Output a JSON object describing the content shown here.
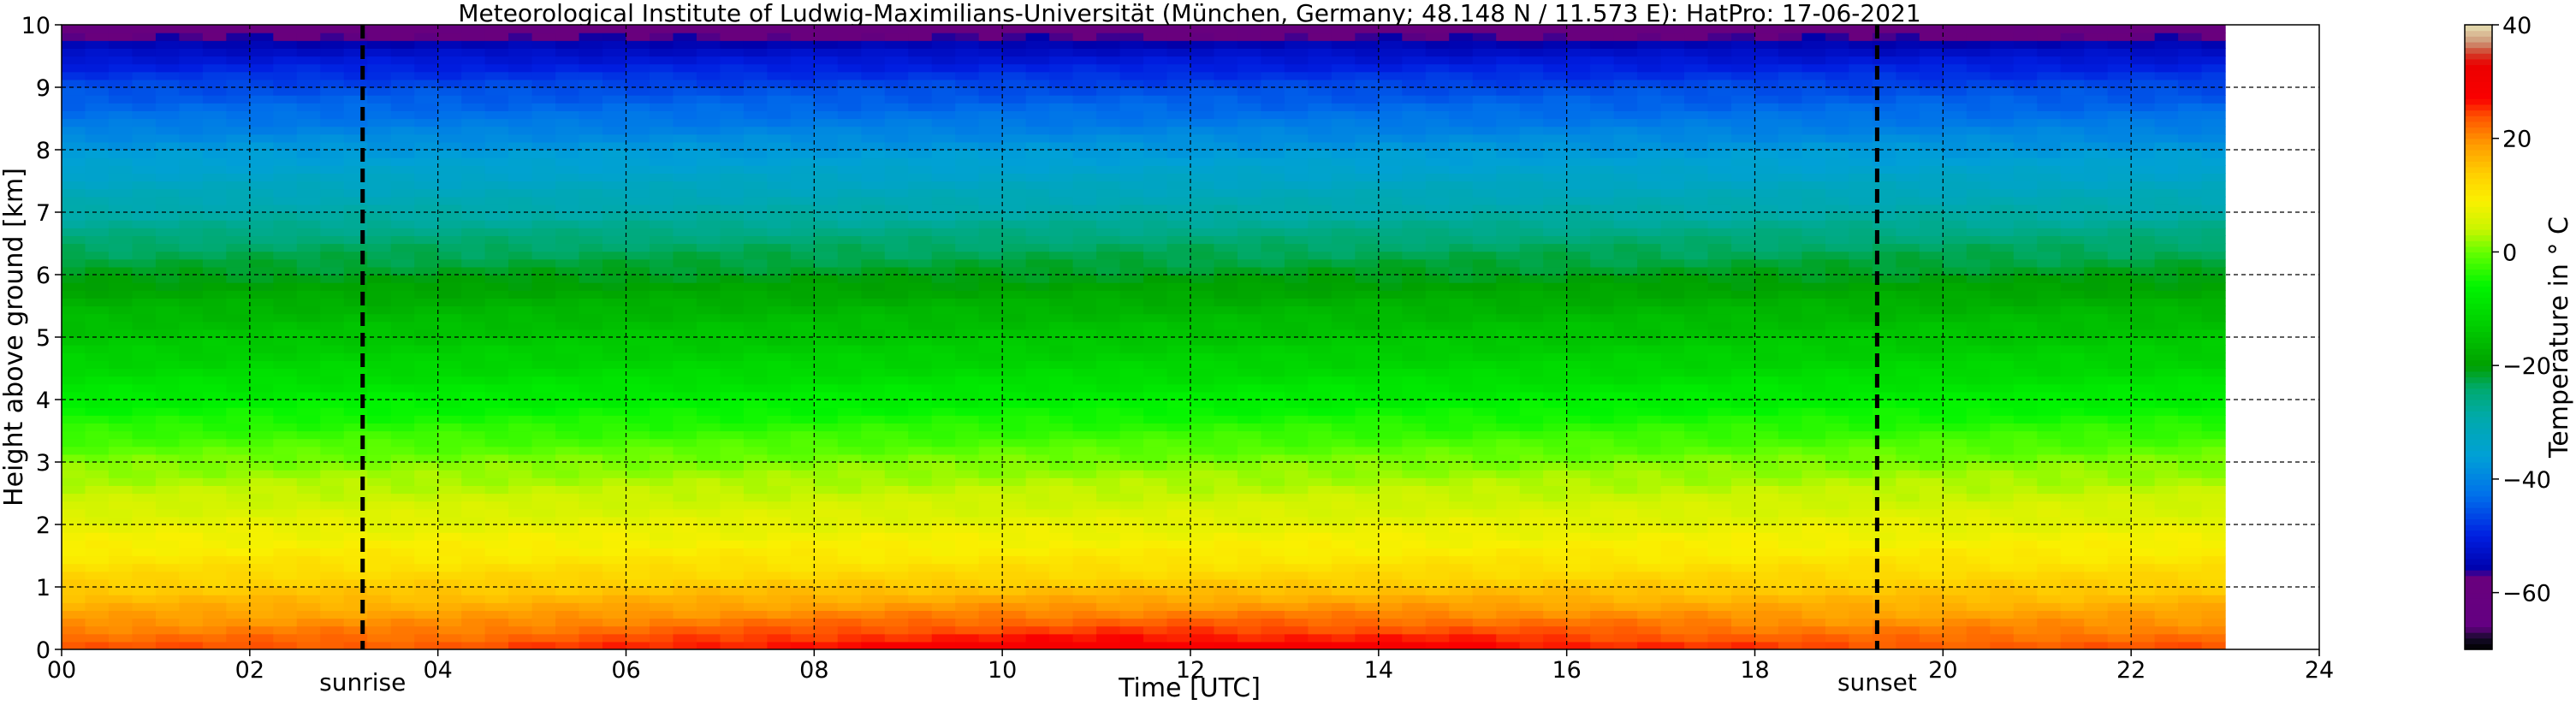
{
  "chart_data": {
    "type": "heatmap",
    "title": "Meteorological Institute of Ludwig-Maximilians-Universität (München, Germany; 48.148 N / 11.573 E):    HatPro: 17-06-2021",
    "xlabel": "Time [UTC]",
    "ylabel": "Height above ground [km]",
    "xlim": [
      0,
      24
    ],
    "ylim": [
      0,
      10
    ],
    "x_ticks": [
      0,
      2,
      4,
      6,
      8,
      10,
      12,
      14,
      16,
      18,
      20,
      22,
      24
    ],
    "x_tick_labels": [
      "00",
      "02",
      "04",
      "06",
      "08",
      "10",
      "12",
      "14",
      "16",
      "18",
      "20",
      "22",
      "24"
    ],
    "y_ticks": [
      0,
      1,
      2,
      3,
      4,
      5,
      6,
      7,
      8,
      9,
      10
    ],
    "y_tick_labels": [
      "0",
      "1",
      "2",
      "3",
      "4",
      "5",
      "6",
      "7",
      "8",
      "9",
      "10"
    ],
    "grid": true,
    "data_x_range": [
      0,
      23
    ],
    "height_km": [
      0,
      0.5,
      1,
      1.5,
      2,
      2.5,
      3,
      3.5,
      4,
      4.5,
      5,
      5.5,
      6,
      6.5,
      7,
      7.5,
      8,
      8.5,
      9,
      9.5,
      10
    ],
    "temperature_profile_c": [
      24,
      19,
      14,
      10,
      7,
      4,
      1,
      -3,
      -7,
      -11,
      -14,
      -17,
      -21,
      -24,
      -29,
      -33,
      -37,
      -42,
      -46,
      -52,
      -60
    ],
    "colorbar": {
      "label": "Temperature in ° C",
      "range": [
        -70,
        40
      ],
      "ticks": [
        40,
        20,
        0,
        -20,
        -40,
        -60
      ],
      "tick_labels": [
        "40",
        "20",
        "0",
        "−20",
        "−40",
        "−60"
      ]
    },
    "vertical_markers": [
      {
        "label": "sunrise",
        "x": 3.2
      },
      {
        "label": "sunset",
        "x": 19.3
      }
    ]
  }
}
